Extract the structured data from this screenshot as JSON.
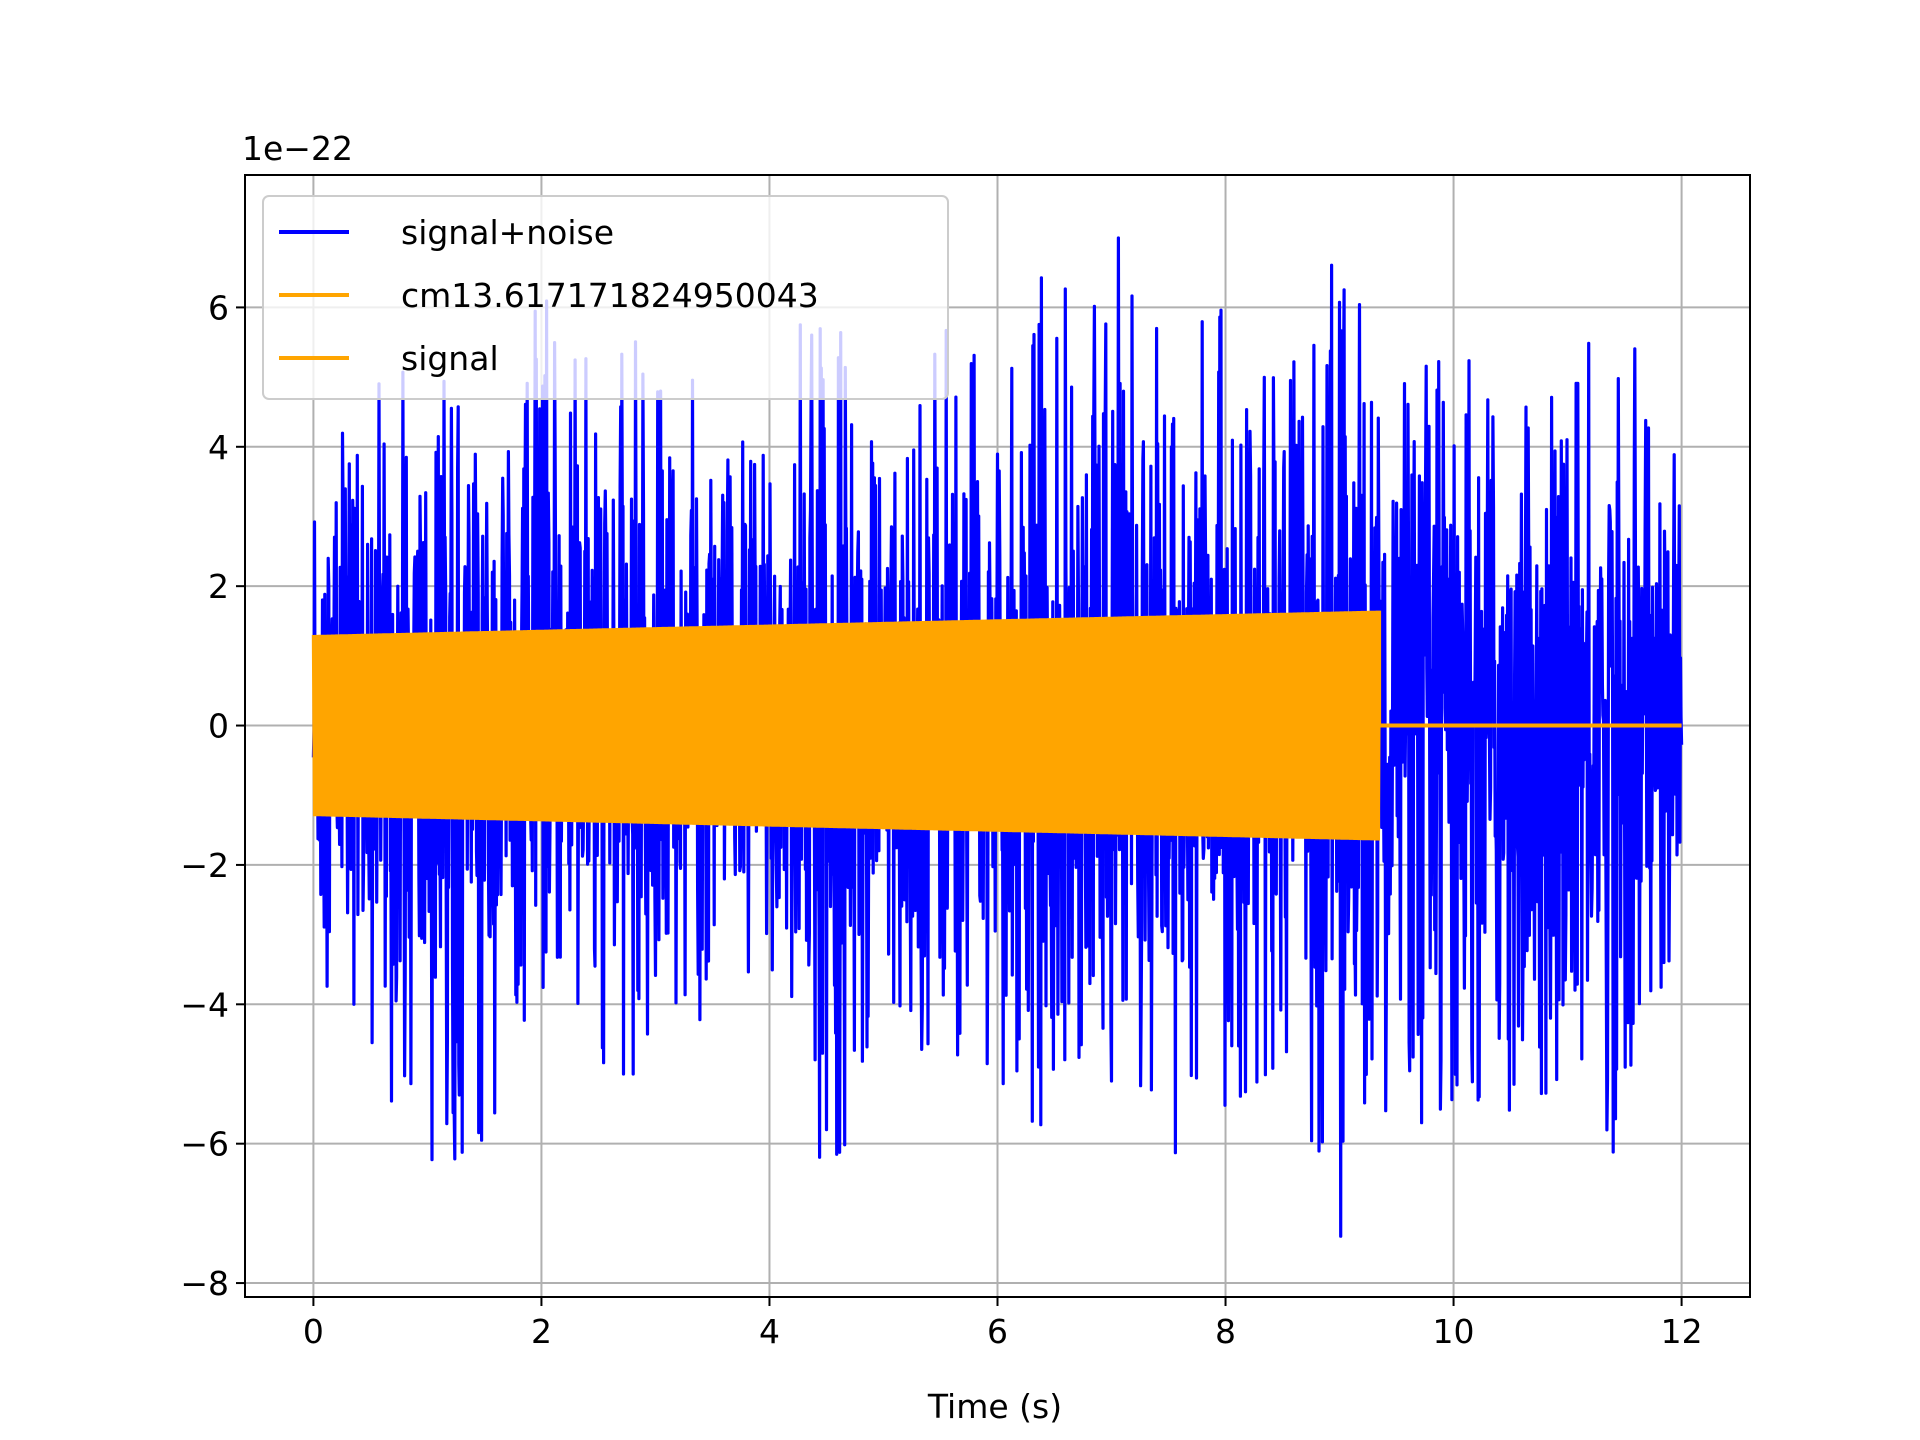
{
  "chart_data": {
    "type": "line",
    "title": "",
    "xlabel": "Time (s)",
    "ylabel": "",
    "y_offset_text": "1e−22",
    "xlim": [
      -0.6,
      12.6
    ],
    "ylim": [
      -8.2,
      7.9
    ],
    "x_ticks": [
      0,
      2,
      4,
      6,
      8,
      10,
      12
    ],
    "x_tick_labels": [
      "0",
      "2",
      "4",
      "6",
      "8",
      "10",
      "12"
    ],
    "y_ticks": [
      -8,
      -6,
      -4,
      -2,
      0,
      2,
      4,
      6
    ],
    "y_tick_labels": [
      "−8",
      "−6",
      "−4",
      "−2",
      "0",
      "2",
      "4",
      "6"
    ],
    "grid": true,
    "legend_position": "top-left",
    "series": [
      {
        "name": "signal+noise",
        "color": "#0000ff",
        "x_range": [
          0,
          12
        ],
        "envelope": {
          "x": [
            0,
            0.5,
            1,
            1.5,
            2,
            2.5,
            3,
            3.5,
            4,
            4.5,
            5,
            5.5,
            6,
            6.5,
            7,
            7.5,
            8,
            8.5,
            9,
            9.5,
            10,
            10.5,
            11,
            11.5,
            12
          ],
          "max": [
            5.0,
            4.9,
            5.2,
            4.3,
            6.2,
            5.0,
            5.8,
            4.5,
            4.8,
            6.7,
            4.2,
            6.5,
            4.5,
            7.0,
            7.2,
            5.5,
            6.0,
            4.8,
            6.9,
            5.0,
            5.3,
            5.3,
            5.3,
            5.8,
            3.6
          ],
          "min": [
            -3.5,
            -4.5,
            -6.9,
            -5.9,
            -4.0,
            -5.0,
            -5.0,
            -4.0,
            -4.7,
            -6.4,
            -5.2,
            -4.8,
            -5.5,
            -5.8,
            -5.1,
            -6.3,
            -5.5,
            -4.8,
            -7.4,
            -5.3,
            -6.4,
            -5.5,
            -5.4,
            -6.3,
            -4.5
          ]
        }
      },
      {
        "name": "cm13.617171824950043",
        "color": "#ffa500",
        "x_range": [
          0,
          9.35
        ],
        "amplitude_start": 1.3,
        "amplitude_end": 1.65
      },
      {
        "name": "signal",
        "color": "#ffa500",
        "x_range": [
          9.35,
          12
        ],
        "value": 0.0
      }
    ]
  }
}
